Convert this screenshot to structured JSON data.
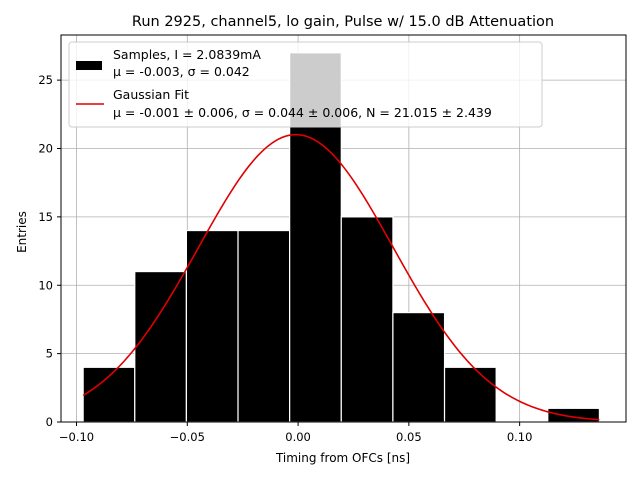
{
  "chart_data": {
    "type": "bar",
    "title": "Run 2925, channel5, lo gain, Pulse w/ 15.0 dB Attenuation",
    "xlabel": "Timing from OFCs [ns]",
    "ylabel": "Entries",
    "xlim": [
      -0.107,
      0.148
    ],
    "ylim": [
      0,
      28.3
    ],
    "xticks": [
      -0.1,
      -0.05,
      0.0,
      0.05,
      0.1
    ],
    "xtick_labels": [
      "−0.10",
      "−0.05",
      "0.00",
      "0.05",
      "0.10"
    ],
    "yticks": [
      0,
      5,
      10,
      15,
      20,
      25
    ],
    "ytick_labels": [
      "0",
      "5",
      "10",
      "15",
      "20",
      "25"
    ],
    "grid": true,
    "colors": {
      "bars": "#000000",
      "bar_edge": "#ffffff",
      "fit_line": "#e00000",
      "grid": "#b0b0b0",
      "spines": "#000000"
    },
    "histogram": {
      "name": "Samples, I = 2.0839mA",
      "stats_label": "μ = -0.003, σ = 0.042",
      "bin_edges": [
        -0.097,
        -0.0737,
        -0.0504,
        -0.0271,
        -0.0038,
        0.0195,
        0.0428,
        0.0661,
        0.0894,
        0.1127,
        0.136
      ],
      "counts": [
        4,
        11,
        14,
        14,
        27,
        15,
        8,
        4,
        0,
        1
      ]
    },
    "fit": {
      "name": "Gaussian Fit",
      "stats_label": "μ = -0.001 ± 0.006, σ = 0.044 ± 0.006, N = 21.015 ± 2.439",
      "mu": -0.001,
      "sigma": 0.044,
      "amplitude": 21.015,
      "x_range": [
        -0.097,
        0.136
      ]
    },
    "legend_position": "upper-left"
  }
}
